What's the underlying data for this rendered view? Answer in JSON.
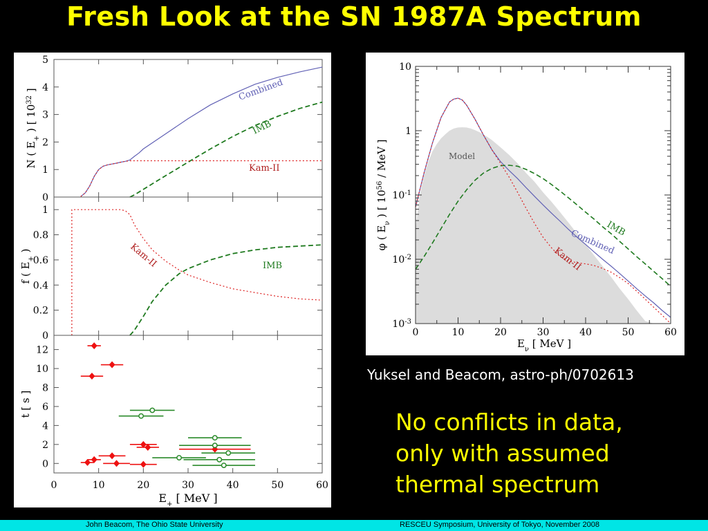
{
  "title": "Fresh Look at the SN 1987A Spectrum",
  "citation": "Yuksel and Beacom, astro-ph/0702613",
  "note": [
    "No conflicts in data,",
    "only with assumed",
    "thermal spectrum"
  ],
  "footer": {
    "left": "John Beacom, The Ohio State University",
    "right": "RESCEU Symposium, University of Tokyo, November 2008"
  },
  "colors": {
    "combined": "#6161b5",
    "imb": "#1f7a1f",
    "kam": "#dd2020",
    "model": "#dcdcdc",
    "title": "#ffff00"
  },
  "chart_data": [
    {
      "type": "line",
      "xlabel": "",
      "ylabel": "N ( E+ )  [ 10^32 ]",
      "ylabel_parts": [
        "N ( E",
        "+",
        " )  [ 10",
        "32",
        " ]"
      ],
      "xlim": [
        0,
        60
      ],
      "ylim": [
        0,
        5
      ],
      "yticks": [
        "0",
        "1",
        "2",
        "3",
        "4",
        "5"
      ],
      "series": [
        {
          "name": "Combined",
          "x": [
            6,
            7,
            8,
            9,
            10,
            11,
            12,
            13,
            14,
            15,
            16,
            17,
            18,
            19,
            20,
            25,
            30,
            35,
            40,
            45,
            50,
            55,
            60
          ],
          "values": [
            0.02,
            0.15,
            0.4,
            0.75,
            1.0,
            1.12,
            1.17,
            1.2,
            1.23,
            1.27,
            1.3,
            1.35,
            1.48,
            1.6,
            1.75,
            2.3,
            2.85,
            3.35,
            3.75,
            4.1,
            4.35,
            4.55,
            4.72
          ]
        },
        {
          "name": "IMB",
          "x": [
            17,
            18,
            20,
            22,
            25,
            28,
            30,
            35,
            40,
            45,
            50,
            55,
            60
          ],
          "values": [
            0.0,
            0.08,
            0.28,
            0.48,
            0.78,
            1.07,
            1.27,
            1.75,
            2.2,
            2.6,
            2.93,
            3.22,
            3.45
          ]
        },
        {
          "name": "Kam-II",
          "x": [
            6,
            7,
            8,
            9,
            10,
            11,
            12,
            13,
            14,
            15,
            16,
            17,
            20,
            30,
            40,
            50,
            60
          ],
          "values": [
            0.02,
            0.15,
            0.4,
            0.75,
            1.0,
            1.12,
            1.17,
            1.2,
            1.23,
            1.27,
            1.3,
            1.32,
            1.32,
            1.32,
            1.32,
            1.32,
            1.32
          ]
        }
      ],
      "annotations": [
        "Combined",
        "IMB",
        "Kam-II"
      ]
    },
    {
      "type": "line",
      "xlabel": "",
      "ylabel": "f ( E+ )",
      "ylabel_parts": [
        "f ( E",
        "+",
        " )"
      ],
      "xlim": [
        0,
        60
      ],
      "ylim": [
        0,
        1.1
      ],
      "yticks": [
        "0",
        "0.2",
        "0.4",
        "0.6",
        "0.8",
        "1"
      ],
      "series": [
        {
          "name": "Kam-II",
          "x": [
            4,
            4.01,
            5,
            10,
            15,
            16,
            17,
            18,
            20,
            22,
            25,
            28,
            30,
            35,
            40,
            45,
            50,
            55,
            60
          ],
          "values": [
            0,
            1.0,
            1.0,
            1.0,
            1.0,
            0.99,
            0.96,
            0.88,
            0.77,
            0.68,
            0.59,
            0.52,
            0.48,
            0.42,
            0.37,
            0.34,
            0.31,
            0.29,
            0.28
          ]
        },
        {
          "name": "IMB",
          "x": [
            17,
            18,
            20,
            22,
            25,
            28,
            30,
            35,
            40,
            45,
            50,
            55,
            60
          ],
          "values": [
            0,
            0.04,
            0.15,
            0.27,
            0.4,
            0.49,
            0.53,
            0.6,
            0.65,
            0.68,
            0.7,
            0.71,
            0.72
          ]
        }
      ],
      "annotations": [
        "Kam-II",
        "IMB"
      ]
    },
    {
      "type": "scatter",
      "xlabel": "E+ [ MeV ]",
      "ylabel": "t [ s ]",
      "xlabel_parts": [
        "E",
        "+",
        " [ MeV ]"
      ],
      "xlim": [
        0,
        60
      ],
      "ylim": [
        -1,
        13.5
      ],
      "xticks": [
        "0",
        "10",
        "20",
        "30",
        "40",
        "50",
        "60"
      ],
      "yticks": [
        "0",
        "2",
        "4",
        "6",
        "8",
        "10",
        "12"
      ],
      "series": [
        {
          "name": "Kam-II",
          "points": [
            {
              "x": 9.0,
              "y": 12.4,
              "xerr": 1.5
            },
            {
              "x": 13.0,
              "y": 10.4,
              "xerr": 2.5
            },
            {
              "x": 8.5,
              "y": 9.2,
              "xerr": 2.5
            },
            {
              "x": 20.0,
              "y": 2.0,
              "xerr": 3.0
            },
            {
              "x": 21.0,
              "y": 1.7,
              "xerr": 2.5
            },
            {
              "x": 13.0,
              "y": 0.8,
              "xerr": 3.0
            },
            {
              "x": 9.0,
              "y": 0.4,
              "xerr": 1.5
            },
            {
              "x": 7.5,
              "y": 0.1,
              "xerr": 1.5
            },
            {
              "x": 14.0,
              "y": 0.0,
              "xerr": 3.0
            },
            {
              "x": 20.0,
              "y": -0.1,
              "xerr": 3.0
            },
            {
              "x": 36.0,
              "y": 1.5,
              "xerr": 8.0
            }
          ]
        },
        {
          "name": "IMB",
          "points": [
            {
              "x": 22.0,
              "y": 5.6,
              "xerr": 5.0
            },
            {
              "x": 19.5,
              "y": 5.0,
              "xerr": 5.0
            },
            {
              "x": 36.0,
              "y": 2.7,
              "xerr": 6.0
            },
            {
              "x": 36.0,
              "y": 1.9,
              "xerr": 8.0
            },
            {
              "x": 39.0,
              "y": 1.1,
              "xerr": 6.0
            },
            {
              "x": 28.0,
              "y": 0.6,
              "xerr": 6.0
            },
            {
              "x": 37.0,
              "y": 0.4,
              "xerr": 8.0
            },
            {
              "x": 38.0,
              "y": -0.2,
              "xerr": 7.0
            }
          ]
        }
      ]
    },
    {
      "type": "line",
      "xlabel": "Eν [ MeV ]",
      "ylabel": "φ ( Eν )  [ 10^56 / MeV ]",
      "xlabel_parts": [
        "E",
        "ν",
        "  [ MeV ]"
      ],
      "ylabel_parts": [
        "φ ( E",
        "ν",
        " )  [ 10",
        "56",
        " / MeV ]"
      ],
      "xlim": [
        0,
        60
      ],
      "ylim": [
        0.001,
        10
      ],
      "yscale": "log",
      "xticks": [
        "0",
        "10",
        "20",
        "30",
        "40",
        "50",
        "60"
      ],
      "yticks": [
        {
          "base": "10",
          "exp": "-3"
        },
        {
          "base": "10",
          "exp": "-2"
        },
        {
          "base": "10",
          "exp": "-1"
        },
        {
          "base": "1",
          "exp": ""
        },
        {
          "base": "10",
          "exp": ""
        }
      ],
      "series": [
        {
          "name": "Model",
          "type": "area",
          "x": [
            0,
            1,
            2,
            3,
            4,
            5,
            6,
            7,
            8,
            9,
            10,
            11,
            12,
            13,
            14,
            15,
            16,
            17,
            18,
            20,
            22,
            24,
            26,
            28,
            30,
            32,
            34,
            36,
            38,
            40,
            42,
            44,
            46,
            48,
            50,
            52,
            54,
            56,
            58,
            60
          ],
          "values": [
            0.03,
            0.1,
            0.2,
            0.33,
            0.48,
            0.62,
            0.76,
            0.88,
            1.0,
            1.08,
            1.12,
            1.13,
            1.12,
            1.08,
            1.02,
            0.95,
            0.87,
            0.79,
            0.71,
            0.55,
            0.42,
            0.31,
            0.22,
            0.16,
            0.11,
            0.078,
            0.054,
            0.037,
            0.025,
            0.017,
            0.0115,
            0.0078,
            0.0053,
            0.0035,
            0.0024,
            0.0016,
            0.0011,
            0.001,
            0.001,
            0.001
          ]
        },
        {
          "name": "Combined",
          "x": [
            0,
            2,
            4,
            6,
            8,
            9,
            10,
            11,
            12,
            14,
            16,
            18,
            20,
            22,
            24,
            26,
            28,
            30,
            32,
            34,
            36,
            38,
            40,
            42,
            44,
            46,
            48,
            50,
            52,
            54,
            56,
            58,
            60
          ],
          "values": [
            0.065,
            0.22,
            0.65,
            1.6,
            2.8,
            3.1,
            3.2,
            3.0,
            2.5,
            1.5,
            0.85,
            0.5,
            0.33,
            0.24,
            0.18,
            0.13,
            0.095,
            0.07,
            0.052,
            0.039,
            0.029,
            0.022,
            0.017,
            0.013,
            0.01,
            0.0078,
            0.006,
            0.0046,
            0.0035,
            0.0027,
            0.0021,
            0.0016,
            0.00125
          ]
        },
        {
          "name": "IMB",
          "x": [
            0,
            2,
            4,
            6,
            8,
            10,
            12,
            14,
            16,
            18,
            20,
            22,
            24,
            26,
            28,
            30,
            32,
            34,
            36,
            38,
            40,
            42,
            44,
            46,
            48,
            50,
            52,
            54,
            56,
            58,
            60
          ],
          "values": [
            0.007,
            0.011,
            0.018,
            0.03,
            0.05,
            0.08,
            0.12,
            0.17,
            0.22,
            0.26,
            0.285,
            0.29,
            0.28,
            0.25,
            0.215,
            0.18,
            0.145,
            0.115,
            0.09,
            0.07,
            0.054,
            0.042,
            0.032,
            0.025,
            0.019,
            0.0145,
            0.011,
            0.0085,
            0.0065,
            0.005,
            0.0038
          ]
        },
        {
          "name": "Kam-II",
          "x": [
            0,
            2,
            4,
            6,
            8,
            9,
            10,
            11,
            12,
            14,
            16,
            18,
            20,
            22,
            24,
            26,
            28,
            30,
            32,
            34,
            36,
            38,
            40,
            42,
            44,
            46,
            48,
            50,
            52,
            54,
            56,
            58,
            60
          ],
          "values": [
            0.065,
            0.22,
            0.65,
            1.6,
            2.8,
            3.1,
            3.2,
            3.0,
            2.5,
            1.5,
            0.85,
            0.5,
            0.31,
            0.19,
            0.11,
            0.062,
            0.036,
            0.022,
            0.015,
            0.011,
            0.0095,
            0.0088,
            0.0085,
            0.008,
            0.0072,
            0.0063,
            0.0052,
            0.0042,
            0.0032,
            0.0024,
            0.0018,
            0.00135,
            0.001
          ]
        }
      ],
      "annotations": [
        "Model",
        "IMB",
        "Combined",
        "Kam-II"
      ]
    }
  ]
}
